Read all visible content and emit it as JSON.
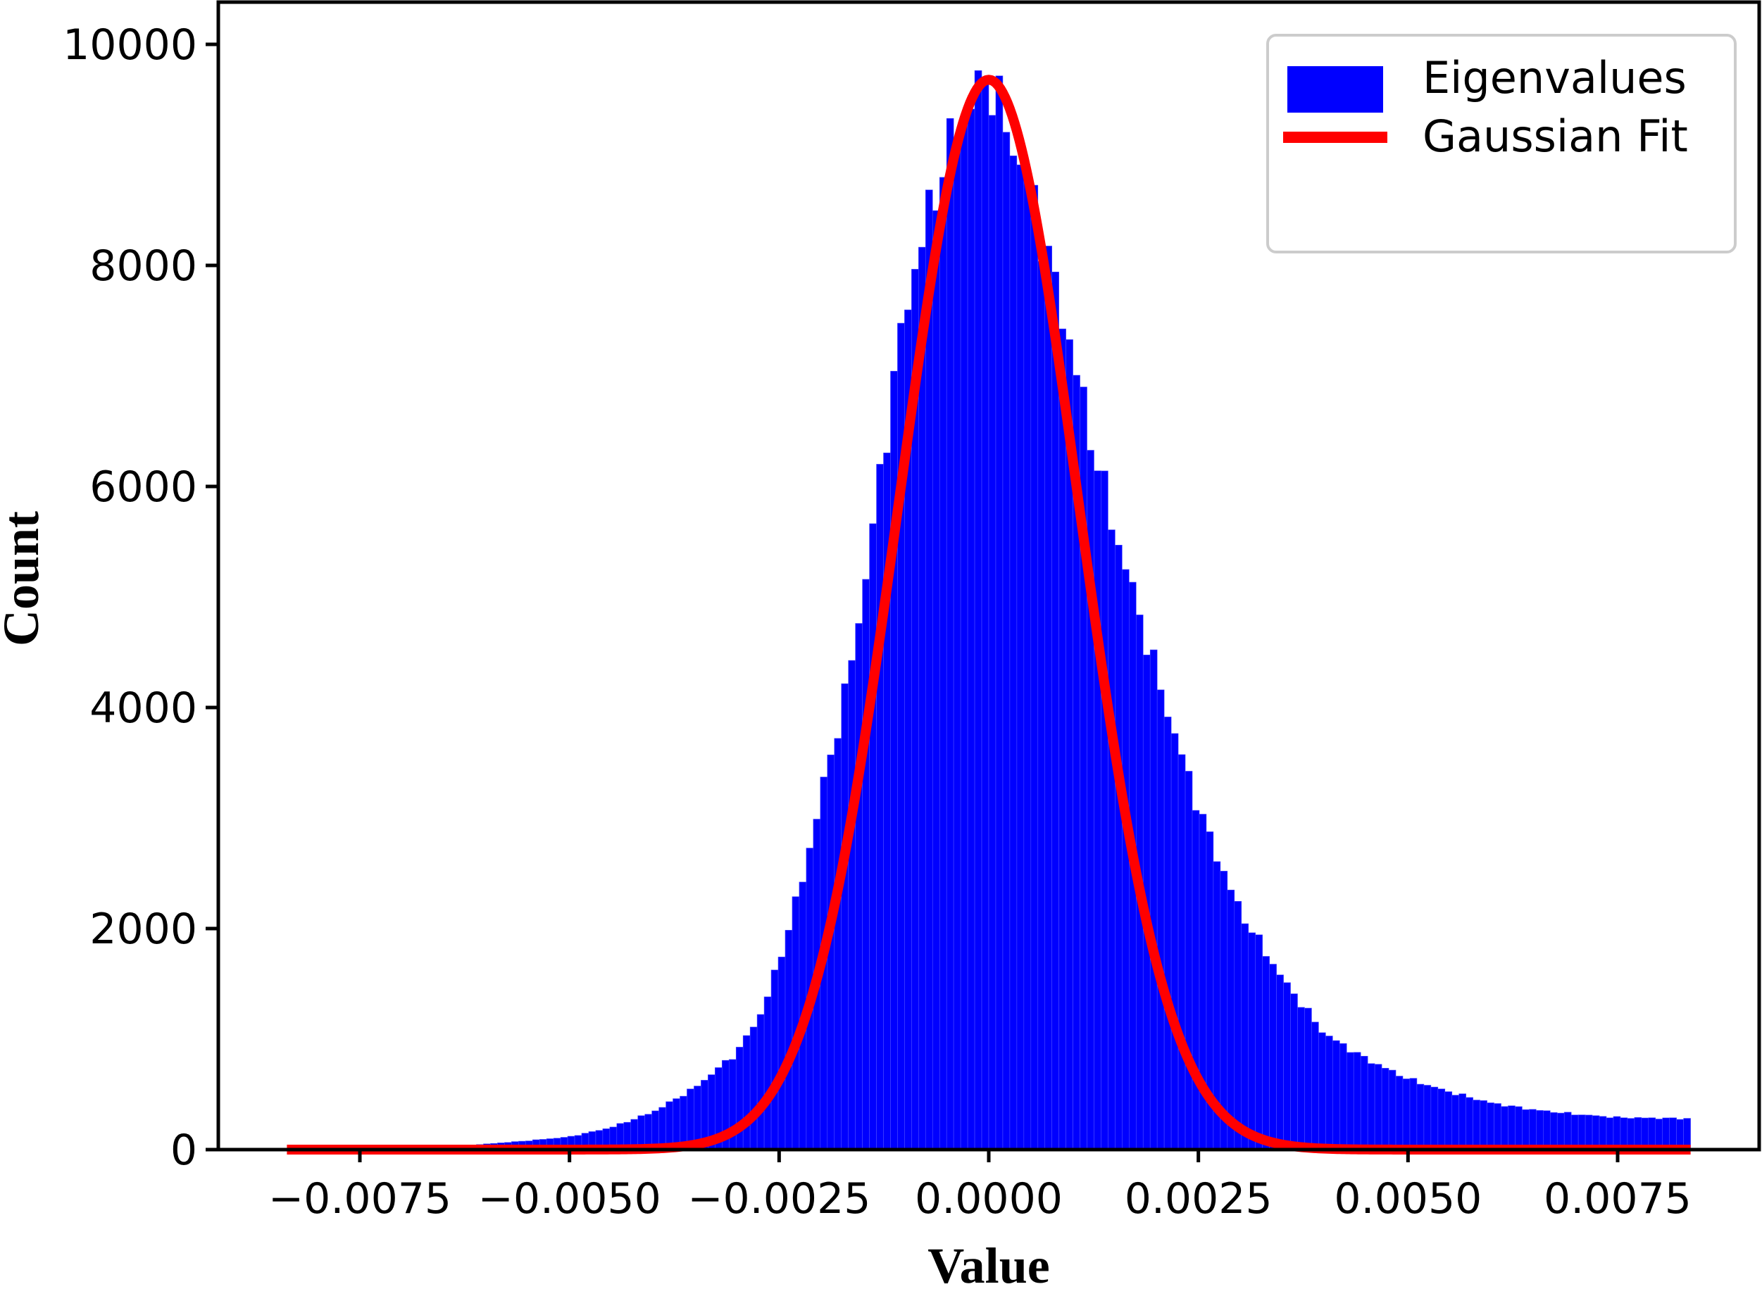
{
  "chart_data": {
    "type": "bar",
    "subtype": "histogram_with_line_fit",
    "title": "",
    "xlabel": "Value",
    "ylabel": "Count",
    "xlim": [
      -0.0091,
      0.0091
    ],
    "ylim": [
      0,
      10000
    ],
    "x_ticks": [
      -0.0075,
      -0.005,
      -0.0025,
      0.0,
      0.0025,
      0.005,
      0.0075
    ],
    "x_tick_labels": [
      "−0.0075",
      "−0.0050",
      "−0.0025",
      "0.0000",
      "0.0025",
      "0.0050",
      "0.0075"
    ],
    "y_ticks": [
      0,
      2000,
      4000,
      6000,
      8000,
      10000
    ],
    "y_tick_labels": [
      "0",
      "2000",
      "4000",
      "6000",
      "8000",
      "10000"
    ],
    "grid": false,
    "legend_position": "upper right",
    "bins": {
      "count": 200,
      "range": [
        -0.00837,
        0.00837
      ]
    },
    "series": [
      {
        "name": "Eigenvalues",
        "kind": "histogram",
        "color": "#0000ff",
        "anchor_points": [
          [
            -0.00837,
            0
          ],
          [
            -0.0075,
            10
          ],
          [
            -0.0065,
            25
          ],
          [
            -0.006,
            50
          ],
          [
            -0.0055,
            80
          ],
          [
            -0.005,
            115
          ],
          [
            -0.0045,
            200
          ],
          [
            -0.004,
            340
          ],
          [
            -0.0035,
            560
          ],
          [
            -0.003,
            880
          ],
          [
            -0.0027,
            1250
          ],
          [
            -0.0025,
            1700
          ],
          [
            -0.0022,
            2500
          ],
          [
            -0.002,
            3200
          ],
          [
            -0.0017,
            4150
          ],
          [
            -0.0015,
            5000
          ],
          [
            -0.0012,
            6600
          ],
          [
            -0.001,
            7600
          ],
          [
            -0.0007,
            8500
          ],
          [
            -0.0005,
            9000
          ],
          [
            -0.0002,
            9500
          ],
          [
            0.0,
            9750
          ],
          [
            0.0002,
            9250
          ],
          [
            0.0005,
            8700
          ],
          [
            0.0007,
            8100
          ],
          [
            0.001,
            7200
          ],
          [
            0.0012,
            6500
          ],
          [
            0.0015,
            5600
          ],
          [
            0.0017,
            5100
          ],
          [
            0.002,
            4300
          ],
          [
            0.0022,
            3800
          ],
          [
            0.0025,
            3100
          ],
          [
            0.0027,
            2700
          ],
          [
            0.003,
            2150
          ],
          [
            0.0035,
            1550
          ],
          [
            0.004,
            1050
          ],
          [
            0.0045,
            820
          ],
          [
            0.005,
            640
          ],
          [
            0.0055,
            520
          ],
          [
            0.006,
            420
          ],
          [
            0.0065,
            360
          ],
          [
            0.007,
            320
          ],
          [
            0.0075,
            290
          ],
          [
            0.00837,
            280
          ]
        ]
      },
      {
        "name": "Gaussian Fit",
        "kind": "line",
        "color": "#ff0000",
        "amplitude": 9680,
        "mean": 0.0,
        "sigma": 0.00107,
        "x_range": [
          -0.00837,
          0.00837
        ]
      }
    ]
  },
  "legend": {
    "items": [
      {
        "label": "Eigenvalues",
        "swatch": "patch",
        "color": "#0000ff"
      },
      {
        "label": "Gaussian Fit",
        "swatch": "line",
        "color": "#ff0000"
      }
    ]
  },
  "axes": {
    "xlabel": "Value",
    "ylabel": "Count"
  }
}
